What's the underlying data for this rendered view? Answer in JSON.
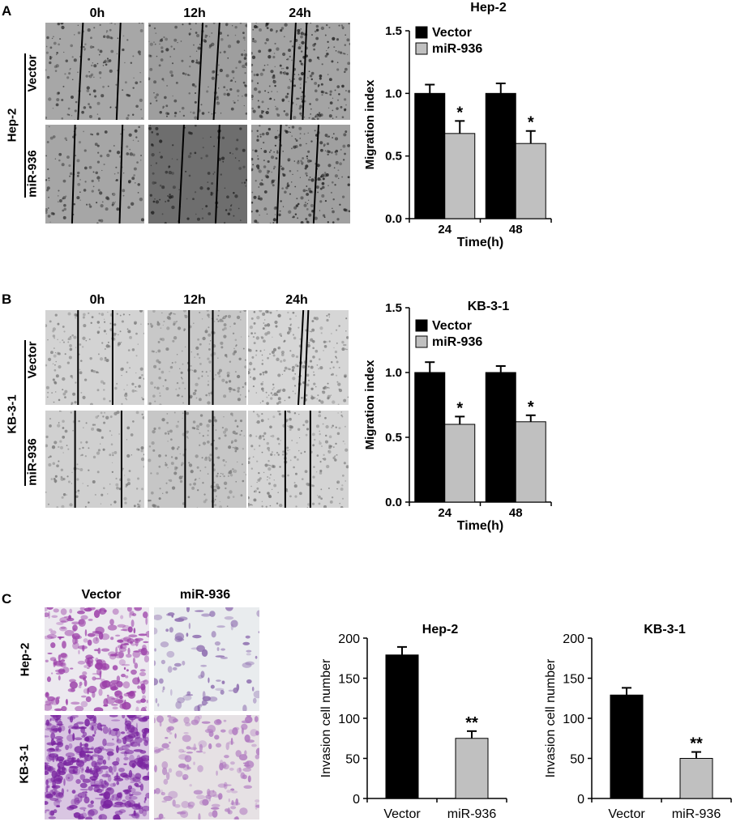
{
  "panels": {
    "A": {
      "letter": "A",
      "cell_line": "Hep-2",
      "time_labels": [
        "0h",
        "12h",
        "24h"
      ],
      "row_labels": [
        "Vector",
        "miR-936"
      ]
    },
    "B": {
      "letter": "B",
      "cell_line": "KB-3-1",
      "time_labels": [
        "0h",
        "12h",
        "24h"
      ],
      "row_labels": [
        "Vector",
        "miR-936"
      ]
    },
    "C": {
      "letter": "C",
      "col_labels": [
        "Vector",
        "miR-936"
      ],
      "row_labels": [
        "Hep-2",
        "KB-3-1"
      ]
    }
  },
  "colors": {
    "vector": "#000000",
    "mir936": "#c0c0c0",
    "stain": "#9b3fa8"
  },
  "chart_data": [
    {
      "id": "chartA",
      "type": "bar",
      "title": "Hep-2",
      "xlabel": "Time(h)",
      "ylabel": "Migration index",
      "categories": [
        "24",
        "48"
      ],
      "ylim": [
        0,
        1.5
      ],
      "yticks": [
        "0.0",
        "0.5",
        "1.0",
        "1.5"
      ],
      "legend": "top-left",
      "series": [
        {
          "name": "Vector",
          "values": [
            1.0,
            1.0
          ],
          "errors": [
            0.07,
            0.08
          ],
          "marks": [
            "",
            ""
          ]
        },
        {
          "name": "miR-936",
          "values": [
            0.68,
            0.6
          ],
          "errors": [
            0.1,
            0.1
          ],
          "marks": [
            "*",
            "*"
          ]
        }
      ]
    },
    {
      "id": "chartB",
      "type": "bar",
      "title": "KB-3-1",
      "xlabel": "Time(h)",
      "ylabel": "Migration index",
      "categories": [
        "24",
        "48"
      ],
      "ylim": [
        0,
        1.5
      ],
      "yticks": [
        "0.0",
        "0.5",
        "1.0",
        "1.5"
      ],
      "legend": "top-left",
      "series": [
        {
          "name": "Vector",
          "values": [
            1.0,
            1.0
          ],
          "errors": [
            0.08,
            0.05
          ],
          "marks": [
            "",
            ""
          ]
        },
        {
          "name": "miR-936",
          "values": [
            0.6,
            0.62
          ],
          "errors": [
            0.06,
            0.05
          ],
          "marks": [
            "*",
            "*"
          ]
        }
      ]
    },
    {
      "id": "chartC1",
      "type": "bar",
      "title": "Hep-2",
      "xlabel": "",
      "ylabel": "Invasion cell number",
      "categories": [
        "Vector",
        "miR-936"
      ],
      "ylim": [
        0,
        200
      ],
      "yticks": [
        "0",
        "50",
        "100",
        "150",
        "200"
      ],
      "values": [
        179,
        75
      ],
      "errors": [
        10,
        9
      ],
      "marks": [
        "",
        "**"
      ]
    },
    {
      "id": "chartC2",
      "type": "bar",
      "title": "KB-3-1",
      "xlabel": "",
      "ylabel": "Invasion cell number",
      "categories": [
        "Vector",
        "miR-936"
      ],
      "ylim": [
        0,
        200
      ],
      "yticks": [
        "0",
        "50",
        "100",
        "150",
        "200"
      ],
      "values": [
        129,
        50
      ],
      "errors": [
        9,
        8
      ],
      "marks": [
        "",
        "**"
      ]
    }
  ]
}
